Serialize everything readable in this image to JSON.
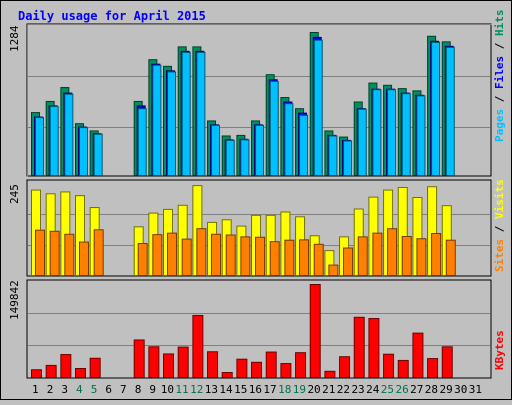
{
  "chart_data": {
    "type": "bar",
    "title": "Daily usage for April 2015",
    "categories": [
      "1",
      "2",
      "3",
      "4",
      "5",
      "6",
      "7",
      "8",
      "9",
      "10",
      "11",
      "12",
      "13",
      "14",
      "15",
      "16",
      "17",
      "18",
      "19",
      "20",
      "21",
      "22",
      "23",
      "24",
      "25",
      "26",
      "27",
      "28",
      "29",
      "30",
      "31"
    ],
    "weekend_days": [
      "4",
      "5",
      "11",
      "12",
      "18",
      "19",
      "25",
      "26"
    ],
    "panels": [
      {
        "name": "top",
        "ylabel_max": "1284",
        "legend": [
          "Pages",
          "Files",
          "Hits"
        ],
        "ylim": [
          0,
          1284
        ],
        "series": [
          {
            "name": "Hits",
            "color": "#009060",
            "values": [
              565,
              665,
              790,
              465,
              400,
              null,
              null,
              665,
              1040,
              980,
              1155,
              1155,
              490,
              355,
              360,
              490,
              905,
              700,
              600,
              1284,
              400,
              345,
              660,
              830,
              810,
              780,
              760,
              1250,
              1200,
              null,
              null
            ]
          },
          {
            "name": "Files",
            "color": "#0000ff",
            "values": [
              525,
              625,
              740,
              435,
              375,
              null,
              null,
              625,
              1000,
              940,
              1115,
              1115,
              455,
              320,
              325,
              455,
              860,
              660,
              560,
              1240,
              360,
              315,
              600,
              775,
              775,
              740,
              720,
              1205,
              1160,
              null,
              null
            ]
          },
          {
            "name": "Pages",
            "color": "#00c0ff",
            "values": [
              520,
              620,
              730,
              430,
              370,
              null,
              null,
              600,
              990,
              930,
              1105,
              1105,
              450,
              315,
              320,
              450,
              845,
              645,
              540,
              1215,
              355,
              310,
              595,
              770,
              770,
              735,
              715,
              1195,
              1150,
              null,
              null
            ]
          }
        ]
      },
      {
        "name": "middle",
        "ylabel_max": "245",
        "legend": [
          "Sites",
          "Visits"
        ],
        "ylim": [
          0,
          245
        ],
        "series": [
          {
            "name": "Visits",
            "color": "#ffff00",
            "values": [
              230,
              220,
              225,
              215,
              183,
              null,
              null,
              131,
              168,
              178,
              189,
              242,
              143,
              150,
              133,
              162,
              162,
              171,
              158,
              107,
              67,
              104,
              179,
              211,
              230,
              237,
              210,
              239,
              188,
              null,
              null
            ]
          },
          {
            "name": "Sites",
            "color": "#ff8000",
            "values": [
              122,
              119,
              111,
              90,
              123,
              null,
              null,
              86,
              110,
              114,
              98,
              126,
              111,
              109,
              104,
              103,
              91,
              95,
              96,
              84,
              28,
              74,
              104,
              114,
              126,
              105,
              99,
              113,
              95,
              null,
              null
            ]
          }
        ]
      },
      {
        "name": "bottom",
        "ylabel_max": "149842",
        "legend": [
          "KBytes"
        ],
        "ylim": [
          0,
          149842
        ],
        "series": [
          {
            "name": "KBytes",
            "color": "#ff0000",
            "values": [
              12500,
              19500,
              37000,
              14500,
              31000,
              null,
              null,
              60500,
              49500,
              38000,
              49000,
              100000,
              41500,
              8000,
              29500,
              24500,
              41000,
              22500,
              40000,
              149842,
              10000,
              33500,
              97000,
              95000,
              37500,
              27500,
              71500,
              30500,
              49500,
              null,
              null
            ]
          }
        ]
      }
    ]
  }
}
